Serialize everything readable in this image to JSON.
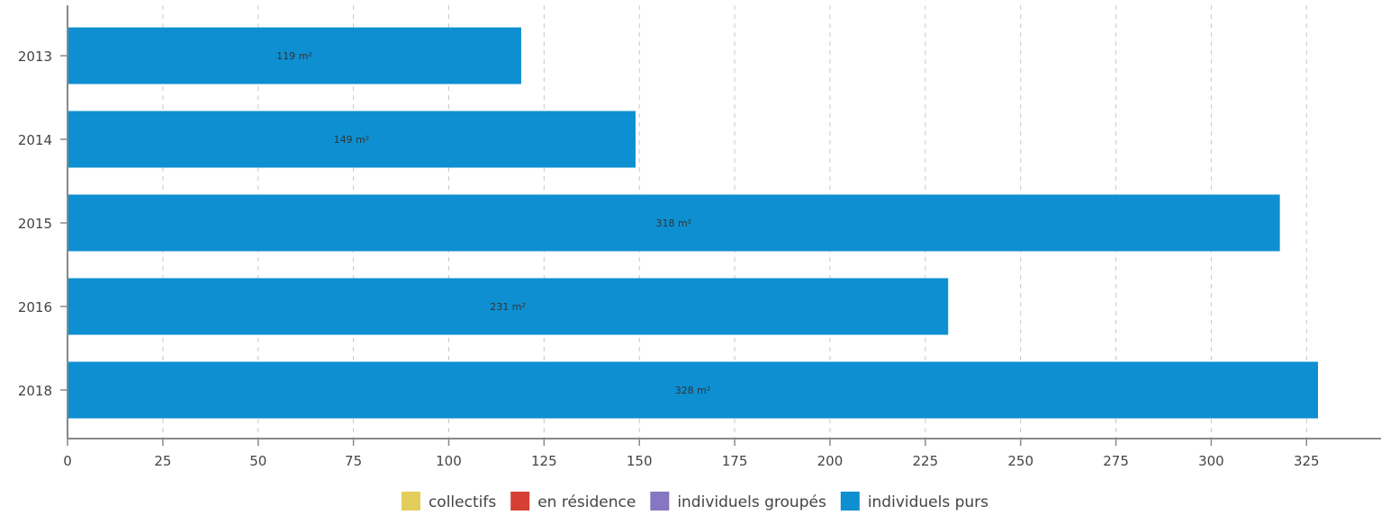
{
  "chart_data": {
    "type": "bar",
    "orientation": "horizontal",
    "categories": [
      "2013",
      "2014",
      "2015",
      "2016",
      "2018"
    ],
    "series": [
      {
        "name": "individuels purs",
        "color": "#0e8fd1",
        "values": [
          119,
          149,
          318,
          231,
          328
        ]
      }
    ],
    "data_labels": [
      "119 m²",
      "149 m²",
      "318 m²",
      "231 m²",
      "328 m²"
    ],
    "x_ticks": [
      "0",
      "25",
      "50",
      "75",
      "100",
      "125",
      "150",
      "175",
      "200",
      "225",
      "250",
      "275",
      "300",
      "325"
    ],
    "xlim": [
      0,
      345
    ],
    "grid": "vertical-dashed",
    "legend_position": "bottom",
    "legend": [
      {
        "label": "collectifs",
        "color": "#e3cd5a"
      },
      {
        "label": "en résidence",
        "color": "#d53f34"
      },
      {
        "label": "individuels groupés",
        "color": "#8677c2"
      },
      {
        "label": "individuels purs",
        "color": "#0e8fd1"
      }
    ]
  }
}
